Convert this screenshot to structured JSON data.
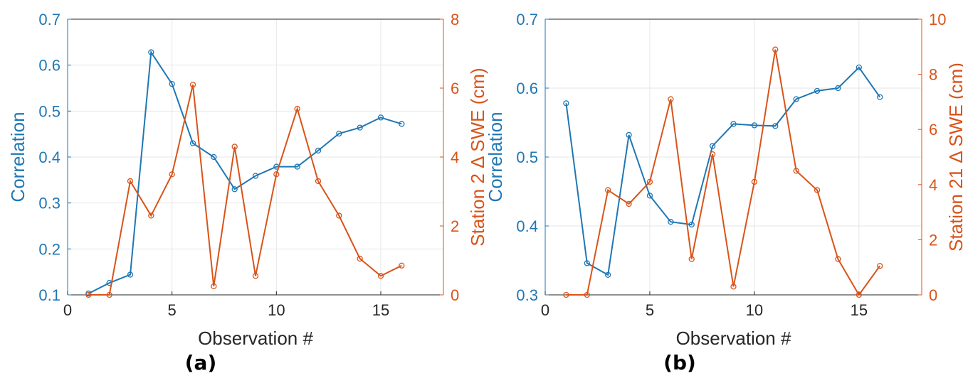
{
  "colors": {
    "left": "#1f77b4",
    "right": "#d95319",
    "grid": "#e6e6e6",
    "axis": "#262626"
  },
  "chart_data": [
    {
      "type": "line",
      "panel_label": "(a)",
      "xlabel": "Observation #",
      "ylabel_left": "Correlation",
      "ylabel_right": "Station 2 Δ SWE (cm)",
      "xlim": [
        0,
        18
      ],
      "ylim_left": [
        0.1,
        0.7
      ],
      "ylim_right": [
        0,
        8
      ],
      "xticks": [
        0,
        5,
        10,
        15
      ],
      "yticks_left": [
        0.1,
        0.2,
        0.3,
        0.4,
        0.5,
        0.6,
        0.7
      ],
      "yticks_right": [
        0,
        2,
        4,
        6,
        8
      ],
      "grid": true,
      "series": [
        {
          "axis": "left",
          "x": [
            1,
            2,
            3,
            4,
            5,
            6,
            7,
            8,
            9,
            10,
            11,
            12,
            13,
            14,
            15,
            16
          ],
          "values": [
            0.103,
            0.126,
            0.144,
            0.628,
            0.559,
            0.43,
            0.4,
            0.33,
            0.359,
            0.379,
            0.379,
            0.414,
            0.451,
            0.464,
            0.486,
            0.472
          ]
        },
        {
          "axis": "right",
          "x": [
            1,
            2,
            3,
            4,
            5,
            6,
            7,
            8,
            9,
            10,
            11,
            12,
            13,
            14,
            15,
            16
          ],
          "values": [
            0.0,
            0.0,
            3.3,
            2.3,
            3.5,
            6.1,
            0.25,
            4.3,
            0.55,
            3.5,
            5.4,
            3.3,
            2.3,
            1.05,
            0.55,
            0.85
          ]
        }
      ]
    },
    {
      "type": "line",
      "panel_label": "(b)",
      "xlabel": "Observation #",
      "ylabel_left": "Correlation",
      "ylabel_right": "Station 21 Δ SWE (cm)",
      "xlim": [
        0,
        18
      ],
      "ylim_left": [
        0.3,
        0.7
      ],
      "ylim_right": [
        0,
        10
      ],
      "xticks": [
        0,
        5,
        10,
        15
      ],
      "yticks_left": [
        0.3,
        0.4,
        0.5,
        0.6,
        0.7
      ],
      "yticks_right": [
        0,
        2,
        4,
        6,
        8,
        10
      ],
      "grid": true,
      "series": [
        {
          "axis": "left",
          "x": [
            1,
            2,
            3,
            4,
            5,
            6,
            7,
            8,
            9,
            10,
            11,
            12,
            13,
            14,
            15,
            16
          ],
          "values": [
            0.578,
            0.346,
            0.329,
            0.532,
            0.444,
            0.406,
            0.402,
            0.516,
            0.548,
            0.546,
            0.545,
            0.584,
            0.596,
            0.6,
            0.63,
            0.587
          ]
        },
        {
          "axis": "right",
          "x": [
            1,
            2,
            3,
            4,
            5,
            6,
            7,
            8,
            9,
            10,
            11,
            12,
            13,
            14,
            15,
            16
          ],
          "values": [
            0.0,
            0.0,
            3.8,
            3.3,
            4.1,
            7.1,
            1.3,
            5.1,
            0.3,
            4.1,
            8.9,
            4.5,
            3.8,
            1.3,
            0.0,
            1.05
          ]
        }
      ]
    }
  ]
}
